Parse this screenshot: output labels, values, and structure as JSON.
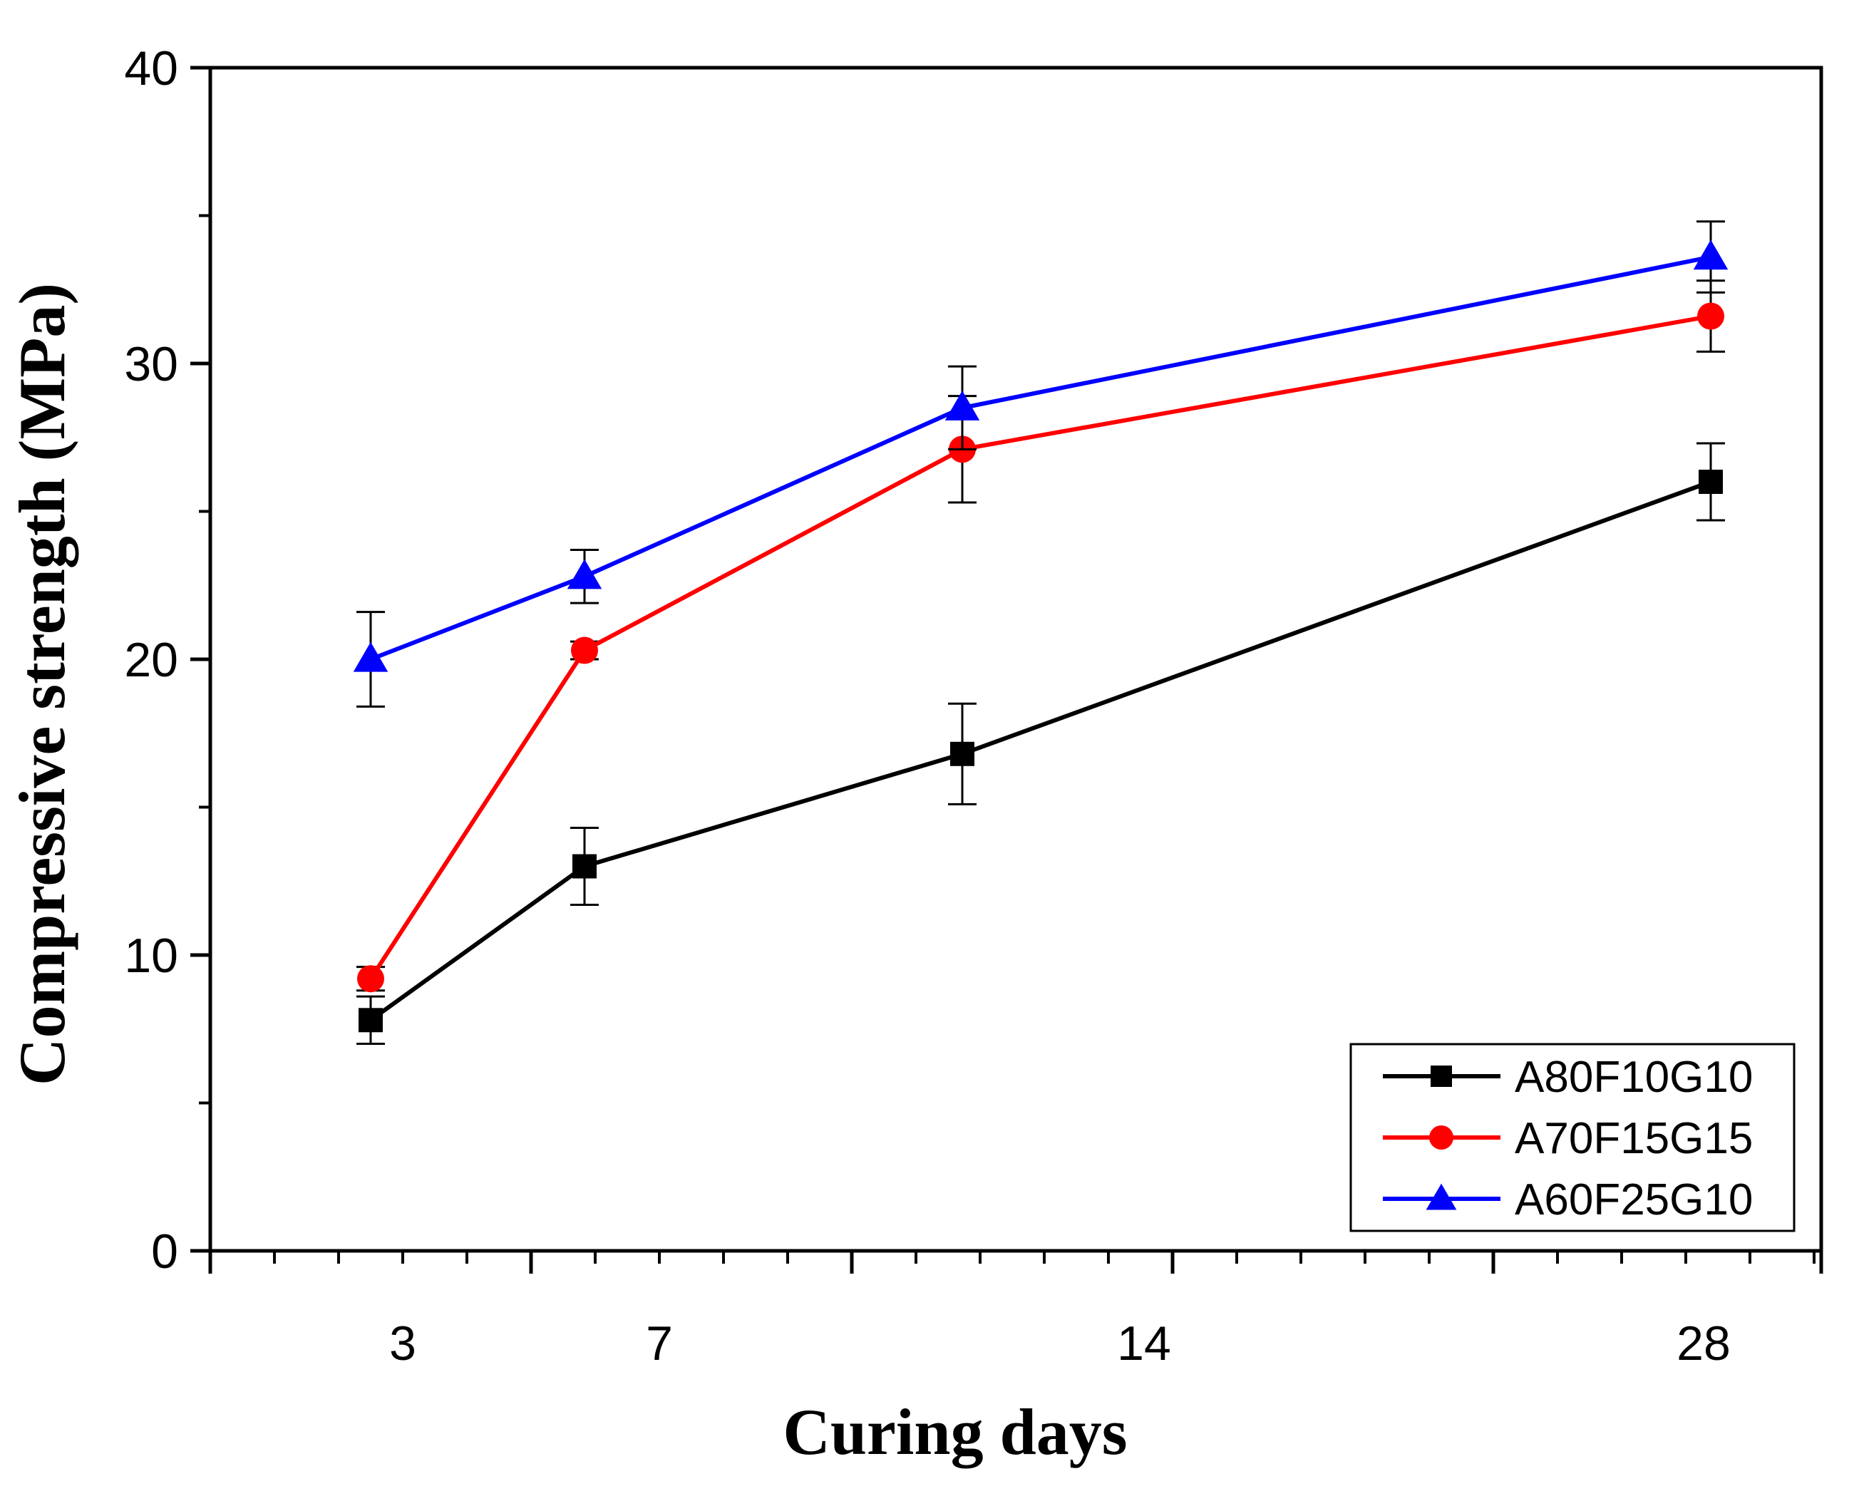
{
  "chart_data": {
    "type": "line",
    "title": "",
    "xlabel": "Curing days",
    "ylabel": "Compressive strength (MPa)",
    "categories": [
      "3",
      "7",
      "14",
      "28"
    ],
    "ylim": [
      0,
      40
    ],
    "yticks": [
      0,
      10,
      20,
      30,
      40
    ],
    "legend_position": "bottom-right",
    "series": [
      {
        "name": "A80F10G10",
        "color": "#000000",
        "marker": "square",
        "values": [
          7.8,
          13.0,
          16.8,
          26.0
        ],
        "errors": [
          0.8,
          1.3,
          1.7,
          1.3
        ]
      },
      {
        "name": "A70F15G15",
        "color": "#ff0000",
        "marker": "circle",
        "values": [
          9.2,
          20.3,
          27.1,
          31.6
        ],
        "errors": [
          0.4,
          0.3,
          1.8,
          1.2
        ]
      },
      {
        "name": "A60F25G10",
        "color": "#0000ff",
        "marker": "triangle",
        "values": [
          20.0,
          22.8,
          28.5,
          33.6
        ],
        "errors": [
          1.6,
          0.9,
          1.4,
          1.2
        ]
      }
    ]
  }
}
